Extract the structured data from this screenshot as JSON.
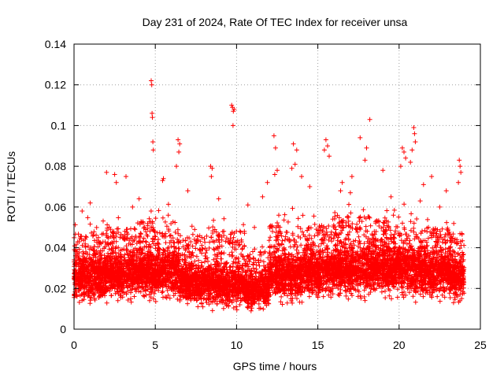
{
  "chart_data": {
    "type": "scatter",
    "title": "Day 231 of 2024, Rate Of TEC Index for receiver unsa",
    "xlabel": "GPS time / hours",
    "ylabel": "ROTI / TECUs",
    "xlim": [
      0,
      25
    ],
    "ylim": [
      0,
      0.14
    ],
    "xticks": [
      "0",
      "5",
      "10",
      "15",
      "20",
      "25"
    ],
    "yticks": [
      "0",
      "0.02",
      "0.04",
      "0.06",
      "0.08",
      "0.1",
      "0.12",
      "0.14"
    ],
    "grid": true,
    "marker": "plus",
    "color": "#ff0000",
    "series": [
      {
        "points": [
          [
            4.75,
            0.122
          ],
          [
            4.78,
            0.12
          ],
          [
            4.8,
            0.106
          ],
          [
            4.82,
            0.104
          ],
          [
            4.85,
            0.092
          ],
          [
            4.88,
            0.088
          ],
          [
            9.7,
            0.11
          ],
          [
            9.75,
            0.109
          ],
          [
            9.8,
            0.107
          ],
          [
            9.78,
            0.1
          ],
          [
            9.85,
            0.108
          ],
          [
            18.2,
            0.103
          ],
          [
            18.0,
            0.089
          ],
          [
            17.9,
            0.083
          ],
          [
            17.6,
            0.094
          ],
          [
            20.9,
            0.099
          ],
          [
            20.95,
            0.096
          ],
          [
            21.0,
            0.092
          ],
          [
            20.8,
            0.088
          ],
          [
            20.7,
            0.082
          ],
          [
            15.5,
            0.093
          ],
          [
            15.6,
            0.09
          ],
          [
            15.4,
            0.088
          ],
          [
            15.7,
            0.085
          ],
          [
            12.3,
            0.095
          ],
          [
            12.4,
            0.089
          ],
          [
            12.5,
            0.078
          ],
          [
            12.35,
            0.076
          ],
          [
            13.5,
            0.091
          ],
          [
            13.7,
            0.088
          ],
          [
            13.6,
            0.081
          ],
          [
            13.4,
            0.079
          ],
          [
            6.4,
            0.093
          ],
          [
            6.5,
            0.091
          ],
          [
            6.45,
            0.087
          ],
          [
            6.3,
            0.08
          ],
          [
            8.4,
            0.08
          ],
          [
            8.5,
            0.079
          ],
          [
            8.45,
            0.075
          ],
          [
            10.7,
            0.061
          ],
          [
            11.1,
            0.05
          ],
          [
            23.7,
            0.083
          ],
          [
            23.75,
            0.08
          ],
          [
            23.8,
            0.077
          ],
          [
            23.65,
            0.072
          ],
          [
            20.2,
            0.089
          ],
          [
            20.3,
            0.087
          ],
          [
            20.4,
            0.084
          ],
          [
            20.1,
            0.08
          ],
          [
            2.0,
            0.077
          ],
          [
            2.5,
            0.076
          ],
          [
            3.2,
            0.075
          ],
          [
            2.6,
            0.072
          ],
          [
            5.5,
            0.074
          ],
          [
            5.45,
            0.073
          ],
          [
            7.0,
            0.068
          ],
          [
            16.5,
            0.072
          ],
          [
            16.4,
            0.068
          ],
          [
            19.0,
            0.078
          ],
          [
            19.5,
            0.065
          ],
          [
            22.0,
            0.075
          ],
          [
            22.5,
            0.06
          ],
          [
            14.5,
            0.07
          ],
          [
            14.0,
            0.075
          ],
          [
            11.9,
            0.072
          ],
          [
            11.6,
            0.065
          ],
          [
            1.0,
            0.062
          ],
          [
            0.5,
            0.058
          ],
          [
            3.6,
            0.06
          ],
          [
            4.0,
            0.064
          ],
          [
            8.9,
            0.064
          ],
          [
            17.1,
            0.075
          ],
          [
            17.0,
            0.067
          ],
          [
            21.5,
            0.071
          ],
          [
            21.3,
            0.063
          ],
          [
            22.9,
            0.068
          ]
        ],
        "bands": [
          {
            "from": 0.0,
            "to": 2.0,
            "low": 0.005,
            "core": 0.024,
            "high": 0.055
          },
          {
            "from": 2.0,
            "to": 4.0,
            "low": 0.006,
            "core": 0.025,
            "high": 0.058
          },
          {
            "from": 4.0,
            "to": 6.5,
            "low": 0.006,
            "core": 0.026,
            "high": 0.062
          },
          {
            "from": 6.5,
            "to": 8.5,
            "low": 0.004,
            "core": 0.021,
            "high": 0.055
          },
          {
            "from": 8.5,
            "to": 10.5,
            "low": 0.003,
            "core": 0.02,
            "high": 0.058
          },
          {
            "from": 10.5,
            "to": 12.0,
            "low": 0.003,
            "core": 0.018,
            "high": 0.045
          },
          {
            "from": 12.0,
            "to": 14.0,
            "low": 0.005,
            "core": 0.024,
            "high": 0.06
          },
          {
            "from": 14.0,
            "to": 16.0,
            "low": 0.006,
            "core": 0.026,
            "high": 0.06
          },
          {
            "from": 16.0,
            "to": 18.5,
            "low": 0.006,
            "core": 0.027,
            "high": 0.065
          },
          {
            "from": 18.5,
            "to": 21.0,
            "low": 0.007,
            "core": 0.028,
            "high": 0.062
          },
          {
            "from": 21.0,
            "to": 23.0,
            "low": 0.006,
            "core": 0.026,
            "high": 0.058
          },
          {
            "from": 23.0,
            "to": 24.0,
            "low": 0.005,
            "core": 0.024,
            "high": 0.055
          }
        ]
      }
    ]
  }
}
